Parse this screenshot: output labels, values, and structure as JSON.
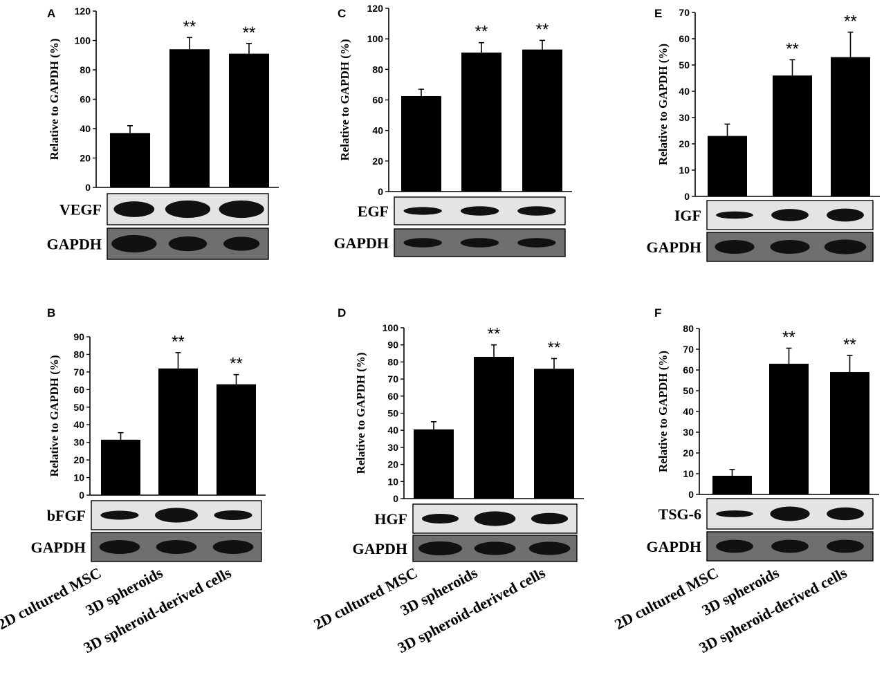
{
  "categories": [
    "2D cultured MSC",
    "3D spheroids",
    "3D spheroid-derived cells"
  ],
  "loading_control": "GAPDH",
  "chart_data": [
    {
      "type": "bar",
      "panel": "A",
      "ylabel": "Relative to GAPDH (%)",
      "ylim": [
        0,
        120
      ],
      "yticks": [
        0,
        20,
        40,
        60,
        80,
        100,
        120
      ],
      "categories": [
        "2D cultured MSC",
        "3D spheroids",
        "3D spheroid-derived cells"
      ],
      "values": [
        37,
        94,
        91
      ],
      "errors": [
        5,
        8,
        7
      ],
      "significance": [
        "",
        "**",
        "**"
      ],
      "blot_label": "VEGF"
    },
    {
      "type": "bar",
      "panel": "B",
      "ylabel": "Relative to GAPDH (%)",
      "ylim": [
        0,
        90
      ],
      "yticks": [
        0,
        10,
        20,
        30,
        40,
        50,
        60,
        70,
        80,
        90
      ],
      "categories": [
        "2D cultured MSC",
        "3D spheroids",
        "3D spheroid-derived cells"
      ],
      "values": [
        31.5,
        72,
        63
      ],
      "errors": [
        4,
        9,
        5.5
      ],
      "significance": [
        "",
        "**",
        "**"
      ],
      "blot_label": "bFGF"
    },
    {
      "type": "bar",
      "panel": "C",
      "ylabel": "Relative to GAPDH (%)",
      "ylim": [
        0,
        120
      ],
      "yticks": [
        0,
        20,
        40,
        60,
        80,
        100,
        120
      ],
      "categories": [
        "2D cultured MSC",
        "3D spheroids",
        "3D spheroid-derived cells"
      ],
      "values": [
        62.5,
        91,
        93
      ],
      "errors": [
        4.5,
        6.5,
        6
      ],
      "significance": [
        "",
        "**",
        "**"
      ],
      "blot_label": "EGF"
    },
    {
      "type": "bar",
      "panel": "D",
      "ylabel": "Relative to GAPDH (%)",
      "ylim": [
        0,
        100
      ],
      "yticks": [
        0,
        10,
        20,
        30,
        40,
        50,
        60,
        70,
        80,
        90,
        100
      ],
      "categories": [
        "2D cultured MSC",
        "3D spheroids",
        "3D spheroid-derived cells"
      ],
      "values": [
        40.5,
        83,
        76
      ],
      "errors": [
        4.5,
        7,
        6
      ],
      "significance": [
        "",
        "**",
        "**"
      ],
      "blot_label": "HGF"
    },
    {
      "type": "bar",
      "panel": "E",
      "ylabel": "Relative to GAPDH (%)",
      "ylim": [
        0,
        70
      ],
      "yticks": [
        0,
        10,
        20,
        30,
        40,
        50,
        60,
        70
      ],
      "categories": [
        "2D cultured MSC",
        "3D spheroids",
        "3D spheroid-derived cells"
      ],
      "values": [
        23,
        46,
        53
      ],
      "errors": [
        4.5,
        6,
        9.5
      ],
      "significance": [
        "",
        "**",
        "**"
      ],
      "blot_label": "IGF"
    },
    {
      "type": "bar",
      "panel": "F",
      "ylabel": "Relative to GAPDH (%)",
      "ylim": [
        0,
        80
      ],
      "yticks": [
        0,
        10,
        20,
        30,
        40,
        50,
        60,
        70,
        80
      ],
      "categories": [
        "2D cultured MSC",
        "3D spheroids",
        "3D spheroid-derived cells"
      ],
      "values": [
        9,
        63,
        59
      ],
      "errors": [
        3,
        7.5,
        8
      ],
      "significance": [
        "",
        "**",
        "**"
      ],
      "blot_label": "TSG-6"
    }
  ]
}
